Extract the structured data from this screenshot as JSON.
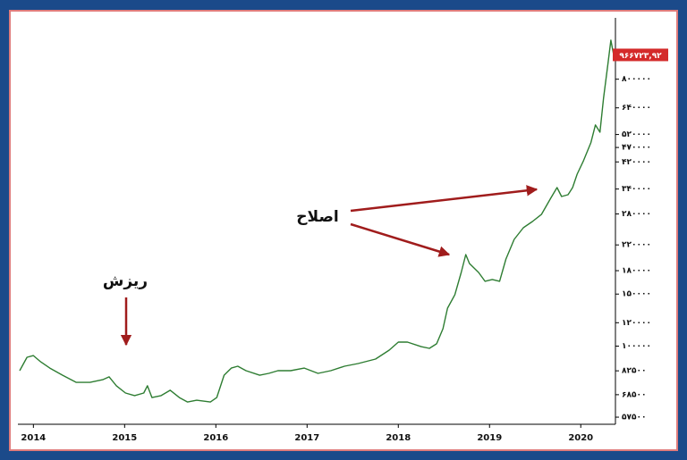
{
  "chart_data": {
    "type": "line",
    "annotations": [
      "ریزش",
      "اصلاح"
    ],
    "color": "#2e7d32",
    "log_scale": true,
    "grid": false,
    "x": [
      2013.85,
      2013.93,
      2014.0,
      2014.08,
      2014.18,
      2014.32,
      2014.47,
      2014.62,
      2014.76,
      2014.83,
      2014.91,
      2015.01,
      2015.11,
      2015.21,
      2015.25,
      2015.3,
      2015.4,
      2015.5,
      2015.6,
      2015.69,
      2015.79,
      2015.94,
      2016.01,
      2016.09,
      2016.17,
      2016.24,
      2016.33,
      2016.48,
      2016.58,
      2016.68,
      2016.82,
      2016.97,
      2017.12,
      2017.26,
      2017.41,
      2017.56,
      2017.75,
      2017.9,
      2018.0,
      2018.1,
      2018.25,
      2018.34,
      2018.42,
      2018.49,
      2018.54,
      2018.62,
      2018.69,
      2018.74,
      2018.78,
      2018.88,
      2018.95,
      2019.03,
      2019.11,
      2019.18,
      2019.27,
      2019.37,
      2019.47,
      2019.57,
      2019.67,
      2019.74,
      2019.79,
      2019.86,
      2019.91,
      2019.96,
      2020.03,
      2020.11,
      2020.16,
      2020.21,
      2020.25,
      2020.3,
      2020.33,
      2020.36
    ],
    "values": [
      82600,
      91700,
      92900,
      88500,
      84300,
      79700,
      75400,
      75400,
      77000,
      78700,
      73400,
      69400,
      68000,
      69400,
      73400,
      67000,
      68000,
      70900,
      67000,
      64700,
      65600,
      64700,
      67000,
      79700,
      84300,
      85500,
      82600,
      79700,
      80900,
      82600,
      82600,
      84300,
      80900,
      82600,
      85500,
      87300,
      90400,
      96900,
      103200,
      103200,
      99600,
      98300,
      101800,
      114500,
      134400,
      149300,
      177600,
      204100,
      190300,
      177600,
      165700,
      168000,
      165700,
      197100,
      229700,
      251500,
      264000,
      279200,
      316400,
      344000,
      320800,
      325300,
      344000,
      381800,
      424000,
      487300,
      559900,
      529400,
      690000,
      911000,
      1084000,
      966723.92
    ],
    "value_labels": [
      null,
      null,
      null,
      null,
      null,
      null,
      null,
      null,
      null,
      null,
      null,
      null,
      null,
      null,
      null,
      null,
      null,
      null,
      null,
      null,
      null,
      null,
      null,
      null,
      null,
      null,
      null,
      null,
      null,
      null,
      null,
      null,
      null,
      null,
      null,
      null,
      null,
      null,
      null,
      null,
      null,
      null,
      null,
      null,
      null,
      null,
      null,
      null,
      null,
      null,
      null,
      null,
      null,
      null,
      null,
      null,
      null,
      null,
      null,
      null,
      null,
      null,
      null,
      null,
      null,
      null,
      null,
      null,
      null,
      null,
      null,
      "۹۶۶۷۲۳,۹۲"
    ],
    "xlim": [
      2013.83,
      2020.38
    ],
    "xticks": [
      2014,
      2015,
      2016,
      2017,
      2018,
      2019,
      2020
    ],
    "ylim": [
      54400,
      1290000
    ],
    "yticks": [
      {
        "value": 800000,
        "label": "۸۰۰۰۰۰"
      },
      {
        "value": 640000,
        "label": "۶۴۰۰۰۰"
      },
      {
        "value": 520000,
        "label": "۵۲۰۰۰۰"
      },
      {
        "value": 470000,
        "label": "۴۷۰۰۰۰"
      },
      {
        "value": 420000,
        "label": "۴۲۰۰۰۰"
      },
      {
        "value": 340000,
        "label": "۳۴۰۰۰۰"
      },
      {
        "value": 280000,
        "label": "۲۸۰۰۰۰"
      },
      {
        "value": 220000,
        "label": "۲۲۰۰۰۰"
      },
      {
        "value": 180000,
        "label": "۱۸۰۰۰۰"
      },
      {
        "value": 150000,
        "label": "۱۵۰۰۰۰"
      },
      {
        "value": 120000,
        "label": "۱۲۰۰۰۰"
      },
      {
        "value": 100000,
        "label": "۱۰۰۰۰۰"
      },
      {
        "value": 82500,
        "label": "۸۲۵۰۰"
      },
      {
        "value": 68500,
        "label": "۶۸۵۰۰"
      },
      {
        "value": 57500,
        "label": "۵۷۵۰۰"
      }
    ]
  }
}
